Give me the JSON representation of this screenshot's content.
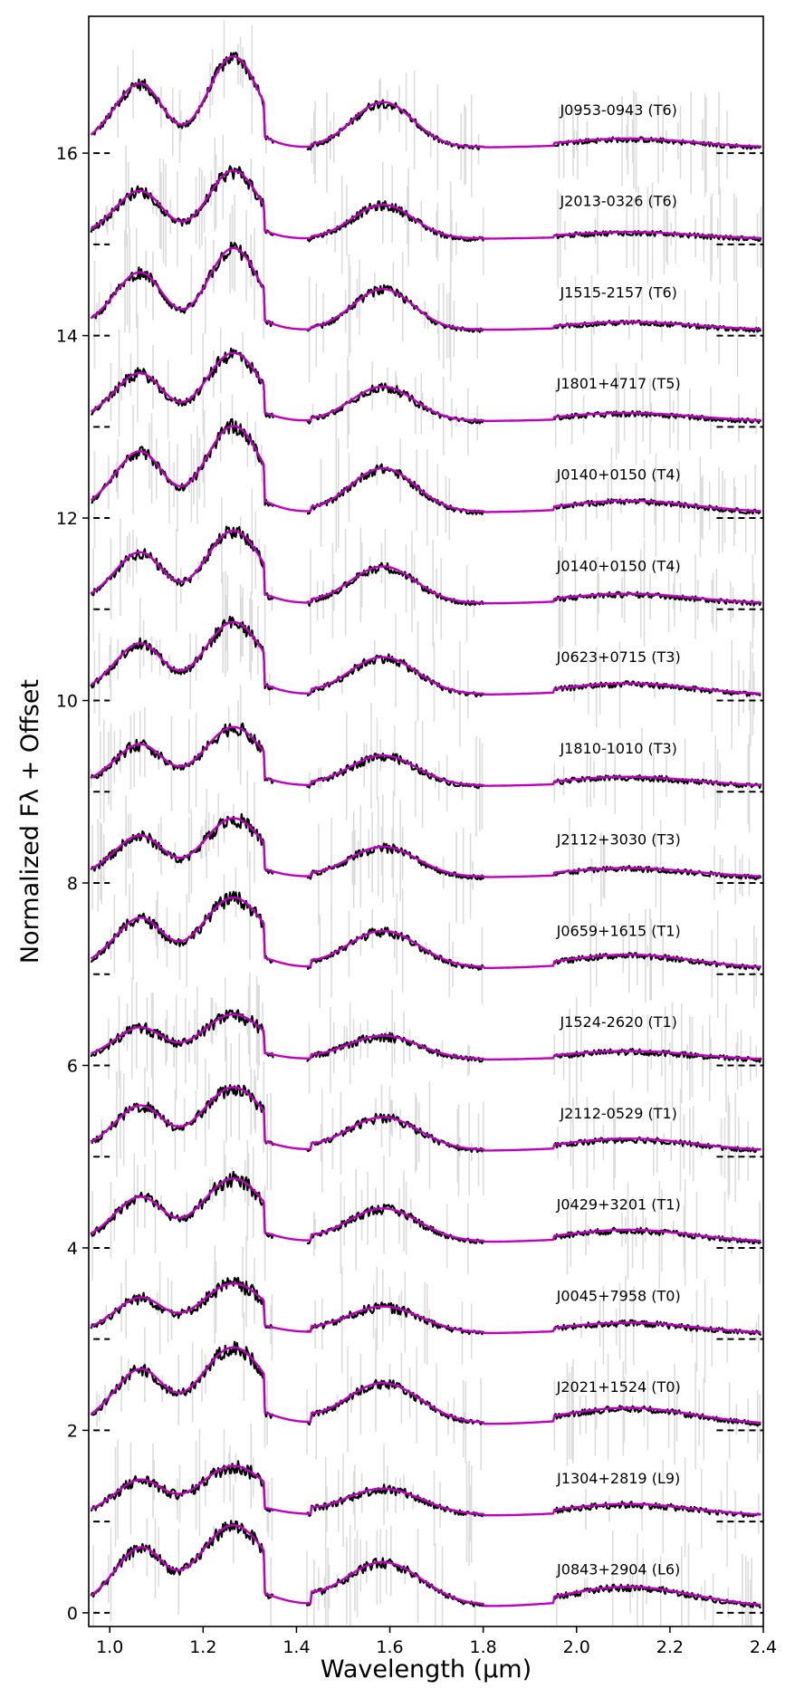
{
  "chart_data": {
    "type": "line",
    "title": "",
    "xlabel": "Wavelength (μm)",
    "ylabel": "Normalized Fλ + Offset",
    "xlim": [
      0.955,
      2.4
    ],
    "ylim": [
      -0.15,
      17.5
    ],
    "x_ticks": [
      1.0,
      1.2,
      1.4,
      1.6,
      1.8,
      2.0,
      2.2,
      2.4
    ],
    "x_tick_labels": [
      "1.0",
      "1.2",
      "1.4",
      "1.6",
      "1.8",
      "2.0",
      "2.2",
      "2.4"
    ],
    "y_ticks": [
      0,
      2,
      4,
      6,
      8,
      10,
      12,
      14,
      16
    ],
    "y_tick_labels": [
      "0",
      "2",
      "4",
      "6",
      "8",
      "10",
      "12",
      "14",
      "16"
    ],
    "legend": "none",
    "colors": {
      "observed": "#000000",
      "model": "#c000c0",
      "uncertainty": "#dcdcdc"
    },
    "series": [
      {
        "name": "J0953-0943 (T6)",
        "offset": 16,
        "scale": 1.0
      },
      {
        "name": "J2013-0326 (T6)",
        "offset": 15,
        "scale": 0.75
      },
      {
        "name": "J1515-2157 (T6)",
        "offset": 14,
        "scale": 0.9
      },
      {
        "name": "J1801+4717 (T5)",
        "offset": 13,
        "scale": 0.75
      },
      {
        "name": "J0140+0150 (T4)",
        "offset": 12,
        "scale": 0.95
      },
      {
        "name": "J0140+0150 (T4)",
        "offset": 11,
        "scale": 0.8
      },
      {
        "name": "J0623+0715 (T3)",
        "offset": 10,
        "scale": 0.8
      },
      {
        "name": "J1810-1010 (T3)",
        "offset": 9,
        "scale": 0.65
      },
      {
        "name": "J2112+3030 (T3)",
        "offset": 8,
        "scale": 0.65
      },
      {
        "name": "J0659+1615 (T1)",
        "offset": 7,
        "scale": 0.78
      },
      {
        "name": "J1524-2620 (T1)",
        "offset": 6,
        "scale": 0.5
      },
      {
        "name": "J2112-0529 (T1)",
        "offset": 5,
        "scale": 0.7
      },
      {
        "name": "J0429+3201 (T1)",
        "offset": 4,
        "scale": 0.7
      },
      {
        "name": "J0045+7958 (T0)",
        "offset": 3,
        "scale": 0.55
      },
      {
        "name": "J2021+1524 (T0)",
        "offset": 2,
        "scale": 0.85
      },
      {
        "name": "J1304+2819 (L9)",
        "offset": 1,
        "scale": 0.55
      },
      {
        "name": "J0843+2904 (L6)",
        "offset": 0,
        "scale": 0.9
      }
    ]
  }
}
